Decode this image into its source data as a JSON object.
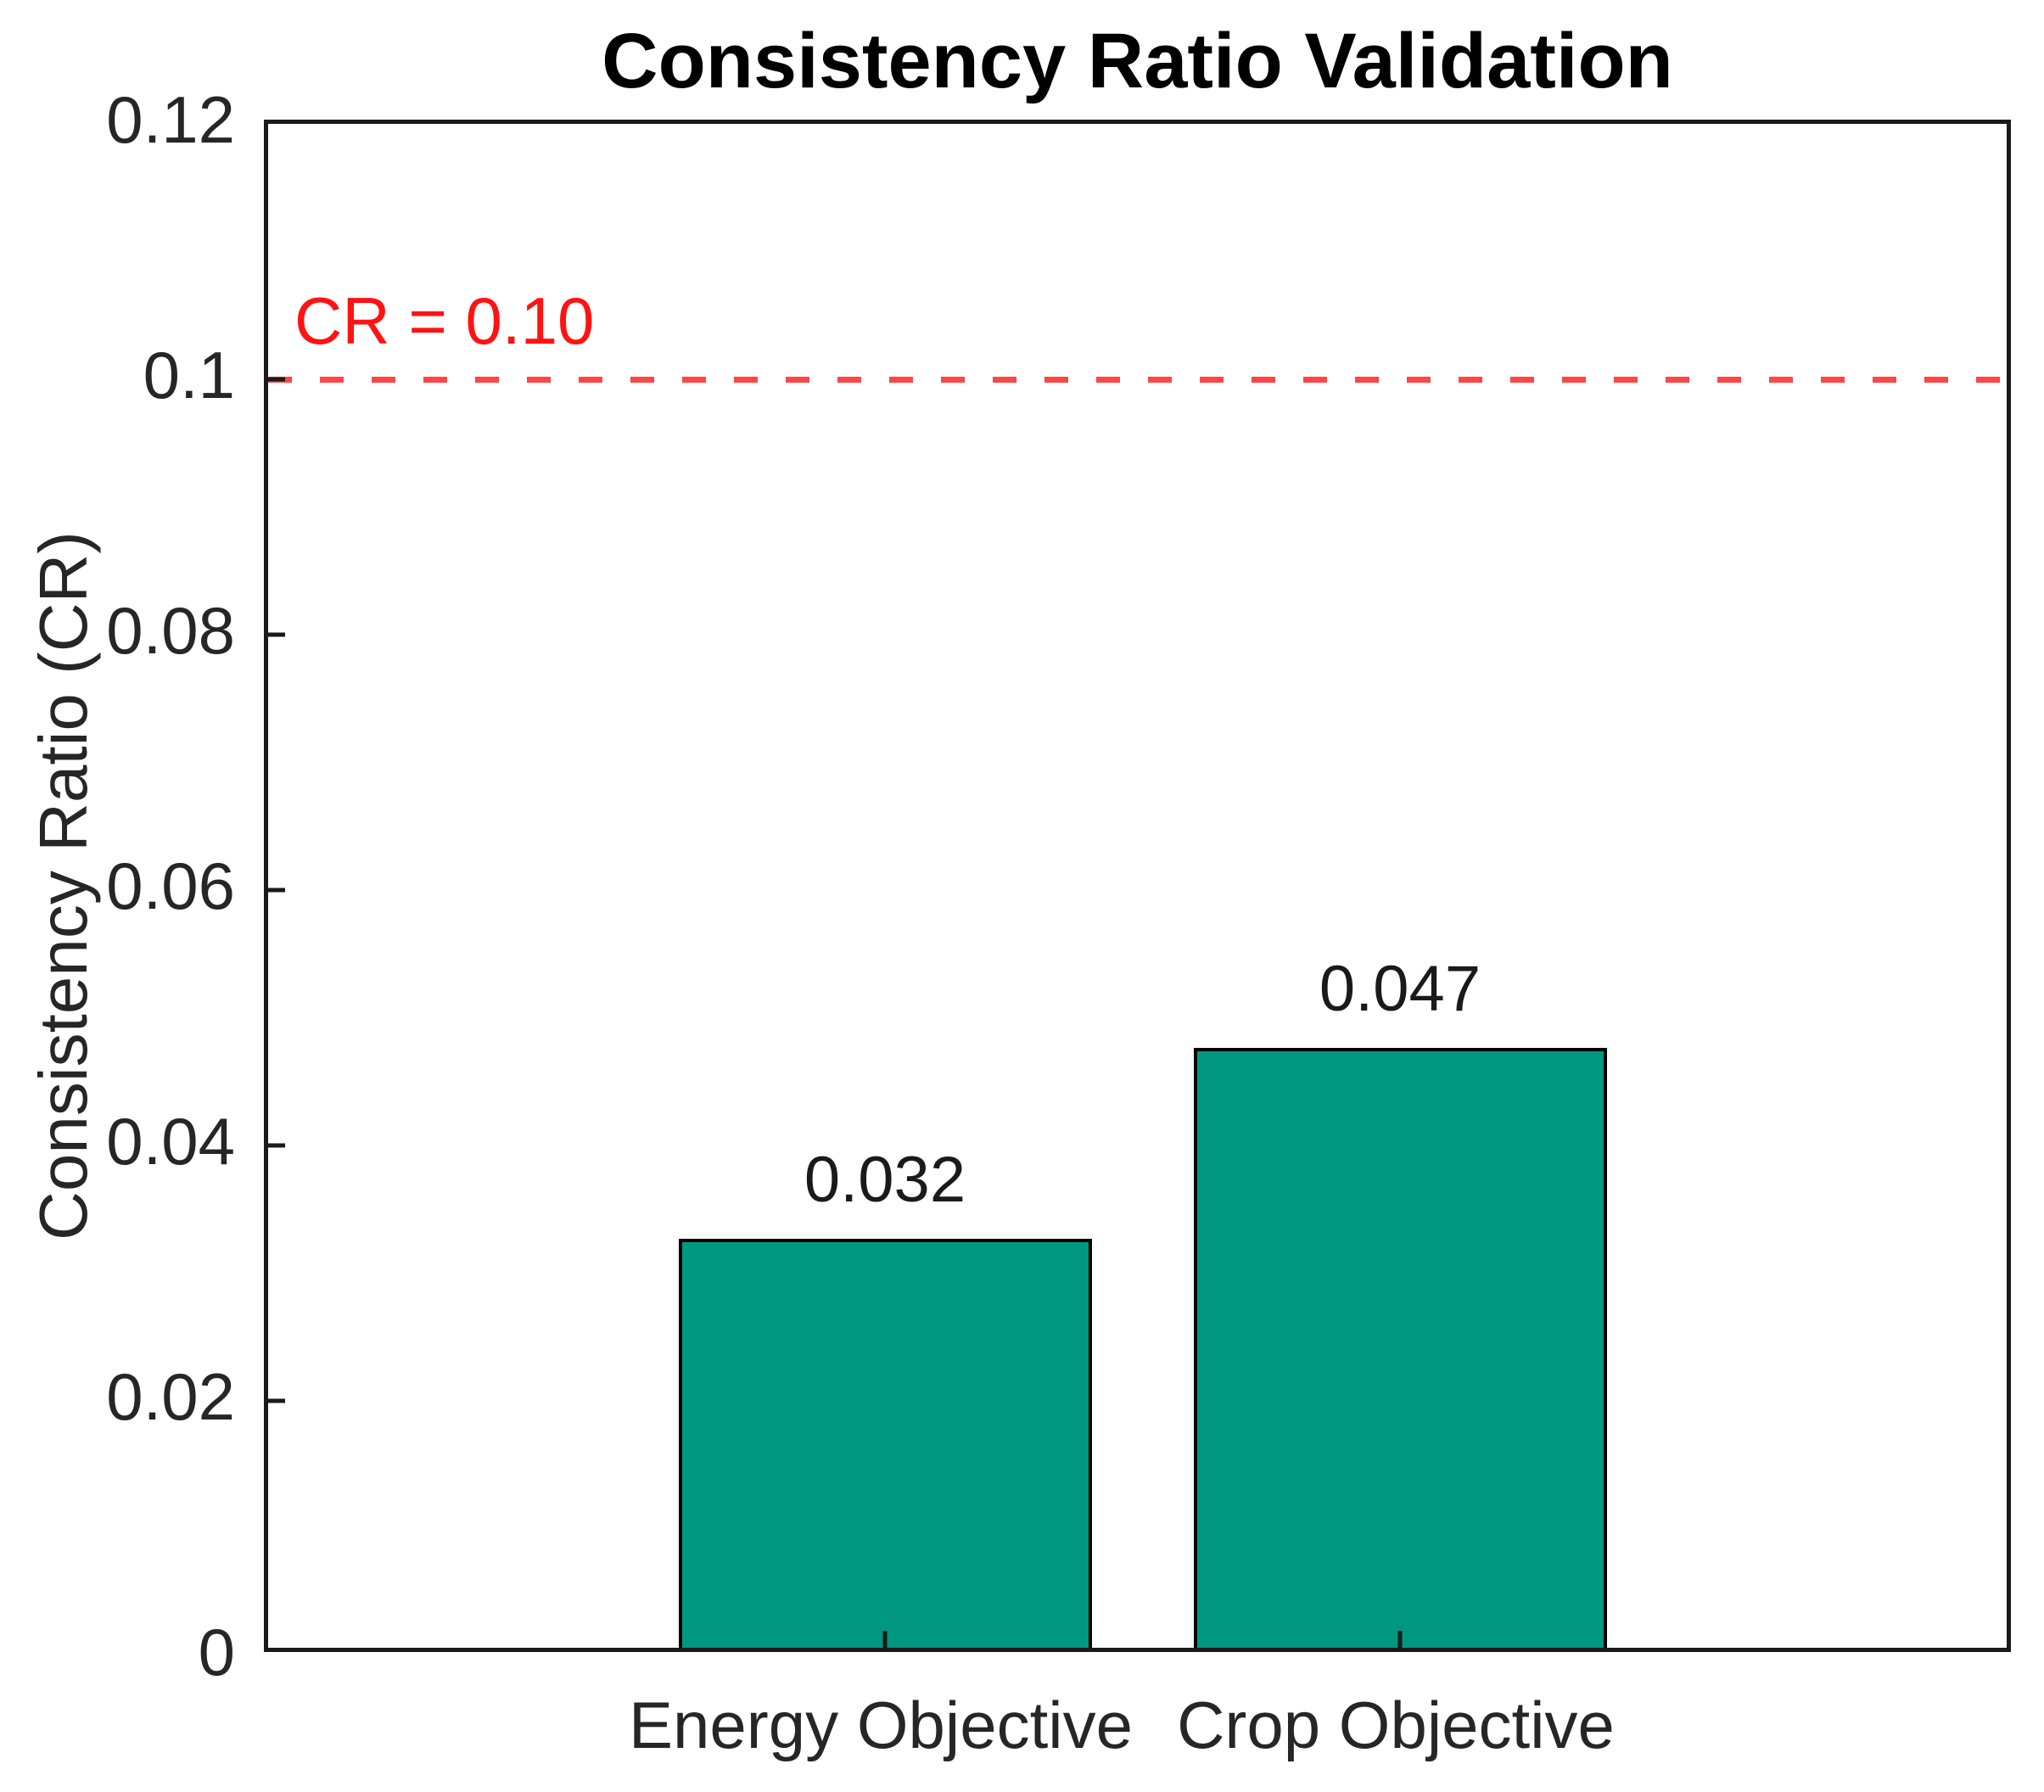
{
  "chart_data": {
    "type": "bar",
    "title": "Consistency Ratio Validation",
    "ylabel": "Consistency Ratio (CR)",
    "xlabel": "",
    "categories": [
      "Energy Objective",
      "Crop Objective"
    ],
    "values": [
      0.032,
      0.047
    ],
    "bar_value_labels": [
      "0.032",
      "0.047"
    ],
    "ylim": [
      0,
      0.12
    ],
    "yticks": [
      0,
      0.02,
      0.04,
      0.06,
      0.08,
      0.1,
      0.12
    ],
    "ytick_labels": [
      "0",
      "0.02",
      "0.04",
      "0.06",
      "0.08",
      "0.1",
      "0.12"
    ],
    "grid": false,
    "legend": null,
    "threshold_line": {
      "value": 0.1,
      "label": "CR = 0.10",
      "style": "dashed"
    },
    "colors": {
      "bar_fill": "#009780",
      "bar_edge": "#000000",
      "threshold_line": "#ff4545",
      "threshold_label": "#ff1212",
      "axis": "#1a1a1a",
      "tick_text": "#262626",
      "title_text": "#000000"
    }
  }
}
